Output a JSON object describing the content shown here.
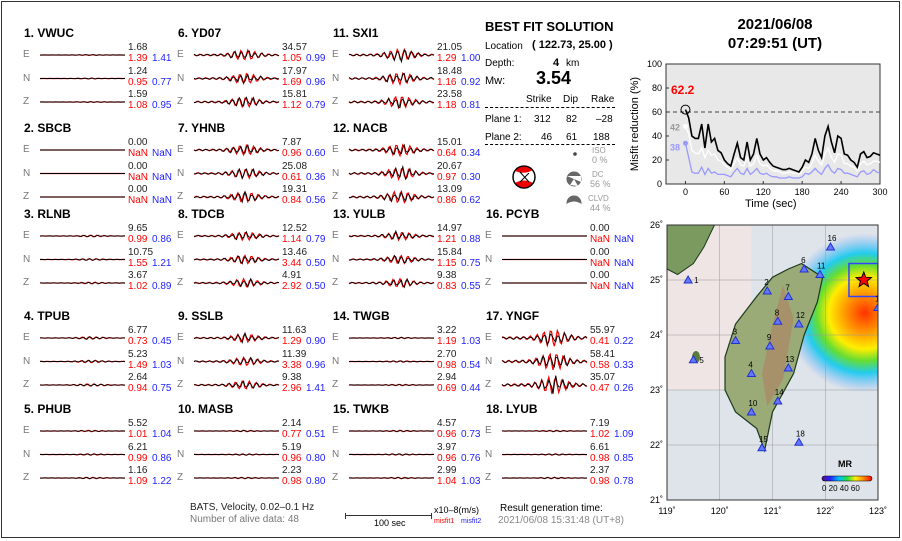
{
  "stations": [
    {
      "id": "1. VWUC",
      "col": 0,
      "row": 0,
      "E": [
        "1.68",
        "1.39",
        "1.41"
      ],
      "N": [
        "1.24",
        "0.95",
        "0.77"
      ],
      "Z": [
        "1.59",
        "1.08",
        "0.95"
      ],
      "amp": 0.05
    },
    {
      "id": "2. SBCB",
      "col": 0,
      "row": 1,
      "E": [
        "0.00",
        "NaN",
        "NaN"
      ],
      "N": [
        "0.00",
        "NaN",
        "NaN"
      ],
      "Z": [
        "0.00",
        "NaN",
        "NaN"
      ],
      "amp": 0
    },
    {
      "id": "3. RLNB",
      "col": 0,
      "row": 2,
      "E": [
        "9.65",
        "0.99",
        "0.86"
      ],
      "N": [
        "10.75",
        "1.55",
        "1.21"
      ],
      "Z": [
        "3.67",
        "1.02",
        "0.89"
      ],
      "amp": 0.1
    },
    {
      "id": "4. TPUB",
      "col": 0,
      "row": 3,
      "E": [
        "6.77",
        "0.73",
        "0.45"
      ],
      "N": [
        "5.23",
        "1.49",
        "1.03"
      ],
      "Z": [
        "2.64",
        "0.94",
        "0.75"
      ],
      "amp": 0.15
    },
    {
      "id": "5. PHUB",
      "col": 0,
      "row": 4,
      "E": [
        "5.52",
        "1.01",
        "1.04"
      ],
      "N": [
        "6.21",
        "0.99",
        "0.86"
      ],
      "Z": [
        "1.16",
        "1.09",
        "1.22"
      ],
      "amp": 0.08
    },
    {
      "id": "6. YD07",
      "col": 1,
      "row": 0,
      "E": [
        "34.57",
        "1.05",
        "0.99"
      ],
      "N": [
        "17.97",
        "1.69",
        "0.96"
      ],
      "Z": [
        "15.81",
        "1.12",
        "0.79"
      ],
      "amp": 0.6
    },
    {
      "id": "7. YHNB",
      "col": 1,
      "row": 1,
      "E": [
        "7.87",
        "0.96",
        "0.60"
      ],
      "N": [
        "25.08",
        "0.61",
        "0.36"
      ],
      "Z": [
        "19.31",
        "0.84",
        "0.56"
      ],
      "amp": 0.6
    },
    {
      "id": "8. TDCB",
      "col": 1,
      "row": 2,
      "E": [
        "12.52",
        "1.14",
        "0.79"
      ],
      "N": [
        "13.46",
        "3.44",
        "0.50"
      ],
      "Z": [
        "4.91",
        "2.92",
        "0.50"
      ],
      "amp": 0.5
    },
    {
      "id": "9. SSLB",
      "col": 1,
      "row": 3,
      "E": [
        "11.63",
        "1.29",
        "0.90"
      ],
      "N": [
        "11.39",
        "3.38",
        "0.96"
      ],
      "Z": [
        "9.38",
        "2.96",
        "1.41"
      ],
      "amp": 0.5
    },
    {
      "id": "10. MASB",
      "col": 1,
      "row": 4,
      "E": [
        "2.14",
        "0.77",
        "0.51"
      ],
      "N": [
        "5.19",
        "0.96",
        "0.80"
      ],
      "Z": [
        "2.23",
        "0.98",
        "0.80"
      ],
      "amp": 0.08
    },
    {
      "id": "11. SXI1",
      "col": 2,
      "row": 0,
      "E": [
        "21.05",
        "1.29",
        "1.00"
      ],
      "N": [
        "18.48",
        "1.16",
        "0.92"
      ],
      "Z": [
        "23.58",
        "1.18",
        "0.81"
      ],
      "amp": 0.7
    },
    {
      "id": "12. NACB",
      "col": 2,
      "row": 1,
      "E": [
        "15.01",
        "0.64",
        "0.34"
      ],
      "N": [
        "20.67",
        "0.97",
        "0.30"
      ],
      "Z": [
        "13.09",
        "0.86",
        "0.62"
      ],
      "amp": 0.7
    },
    {
      "id": "13. YULB",
      "col": 2,
      "row": 2,
      "E": [
        "14.97",
        "1.21",
        "0.88"
      ],
      "N": [
        "15.84",
        "1.15",
        "0.75"
      ],
      "Z": [
        "9.38",
        "0.83",
        "0.55"
      ],
      "amp": 0.5
    },
    {
      "id": "14. TWGB",
      "col": 2,
      "row": 3,
      "E": [
        "3.22",
        "1.19",
        "1.03"
      ],
      "N": [
        "2.70",
        "0.98",
        "0.54"
      ],
      "Z": [
        "2.94",
        "0.69",
        "0.44"
      ],
      "amp": 0.08
    },
    {
      "id": "15. TWKB",
      "col": 2,
      "row": 4,
      "E": [
        "4.57",
        "0.96",
        "0.73"
      ],
      "N": [
        "3.97",
        "0.96",
        "0.76"
      ],
      "Z": [
        "2.99",
        "1.04",
        "1.03"
      ],
      "amp": 0.08
    },
    {
      "id": "16. PCYB",
      "col": 3,
      "row": 2,
      "E": [
        "0.00",
        "NaN",
        "NaN"
      ],
      "N": [
        "0.00",
        "NaN",
        "NaN"
      ],
      "Z": [
        "0.00",
        "NaN",
        "NaN"
      ],
      "amp": 0
    },
    {
      "id": "17. YNGF",
      "col": 3,
      "row": 3,
      "E": [
        "55.97",
        "0.41",
        "0.22"
      ],
      "N": [
        "58.41",
        "0.58",
        "0.33"
      ],
      "Z": [
        "35.07",
        "0.47",
        "0.26"
      ],
      "amp": 1.0
    },
    {
      "id": "18. LYUB",
      "col": 3,
      "row": 4,
      "E": [
        "7.19",
        "1.02",
        "1.09"
      ],
      "N": [
        "6.61",
        "0.98",
        "0.85"
      ],
      "Z": [
        "2.37",
        "0.98",
        "0.78"
      ],
      "amp": 0.08
    }
  ],
  "components": [
    "E",
    "N",
    "Z"
  ],
  "footer": {
    "source": "BATS, Velocity, 0.02–0.1 Hz",
    "alive": "Number of alive data: 48",
    "scale_label": "100 sec",
    "units": "x10–8(m/s)",
    "misfit1": "misfit1",
    "misfit2": "misfit2",
    "gen_label": "Result generation time:",
    "gen_time": "2021/06/08 15:31:48 (UT+8)"
  },
  "solution": {
    "title": "BEST FIT SOLUTION",
    "location_label": "Location",
    "location": "( 122.73,  25.00 )",
    "depth_label": "Depth:",
    "depth": "4",
    "depth_unit": "km",
    "mw_label": "Mw:",
    "mw": "3.54",
    "headers": [
      "Strike",
      "Dip",
      "Rake"
    ],
    "planes": [
      {
        "label": "Plane 1:",
        "values": [
          "312",
          "82",
          "–28"
        ]
      },
      {
        "label": "Plane 2:",
        "values": [
          "46",
          "61",
          "188"
        ]
      }
    ],
    "iso_label": "ISO",
    "iso": "0 %",
    "dc_label": "DC",
    "dc": "56 %",
    "clvd_label": "CLVD",
    "clvd": "44 %"
  },
  "event": {
    "date": "2021/06/08",
    "time": "07:29:51  (UT)"
  },
  "colors": {
    "observed": "#000000",
    "synthetic": "#ee0000",
    "misfit1": "#ff0000",
    "misfit2": "#2222ff",
    "best": "#ff0000"
  },
  "chart_data": {
    "type": "line",
    "xlabel": "Time (sec)",
    "ylabel": "Misfit reduction (%)",
    "xlim": [
      -30,
      300
    ],
    "ylim": [
      0,
      100
    ],
    "xticks": [
      0,
      60,
      120,
      180,
      240,
      300
    ],
    "yticks": [
      0,
      20,
      40,
      60,
      80,
      100
    ],
    "reference_line": 60,
    "annotations": {
      "best": "62.2",
      "gray": "42",
      "blue": "38"
    },
    "x": [
      0,
      5,
      10,
      15,
      20,
      25,
      30,
      35,
      40,
      45,
      50,
      55,
      60,
      65,
      70,
      75,
      80,
      85,
      90,
      95,
      100,
      105,
      110,
      115,
      120,
      125,
      130,
      135,
      140,
      145,
      150,
      155,
      160,
      165,
      170,
      175,
      180,
      185,
      190,
      195,
      200,
      205,
      210,
      215,
      220,
      225,
      230,
      235,
      240,
      245,
      250,
      255,
      260,
      265,
      270,
      275,
      280,
      285,
      290,
      295,
      300
    ],
    "series": [
      {
        "color": "#000000",
        "values": [
          62,
          55,
          40,
          38,
          38,
          50,
          30,
          50,
          35,
          38,
          28,
          26,
          20,
          17,
          15,
          25,
          34,
          22,
          20,
          35,
          20,
          25,
          38,
          25,
          20,
          22,
          18,
          15,
          14,
          13,
          12,
          12,
          13,
          12,
          11,
          10,
          14,
          20,
          18,
          25,
          38,
          28,
          22,
          40,
          48,
          35,
          26,
          40,
          38,
          25,
          24,
          20,
          18,
          14,
          25,
          27,
          22,
          23,
          26,
          25,
          24
        ]
      },
      {
        "color": "#ffffff",
        "values": [
          48,
          42,
          28,
          26,
          25,
          30,
          22,
          28,
          24,
          25,
          20,
          19,
          16,
          14,
          12,
          17,
          22,
          16,
          15,
          22,
          15,
          17,
          24,
          17,
          15,
          16,
          13,
          11,
          11,
          10,
          9,
          9,
          10,
          9,
          9,
          8,
          11,
          14,
          13,
          17,
          24,
          19,
          16,
          25,
          30,
          22,
          18,
          25,
          24,
          17,
          17,
          15,
          14,
          11,
          17,
          19,
          16,
          17,
          19,
          19,
          18
        ]
      },
      {
        "color": "#9999ff",
        "values": [
          34,
          22,
          10,
          9,
          9,
          14,
          8,
          13,
          9,
          10,
          8,
          8,
          8,
          7,
          6,
          10,
          13,
          9,
          8,
          13,
          8,
          10,
          13,
          9,
          8,
          9,
          7,
          6,
          6,
          5,
          5,
          5,
          6,
          5,
          5,
          5,
          6,
          9,
          8,
          10,
          13,
          10,
          8,
          13,
          16,
          11,
          9,
          13,
          12,
          9,
          9,
          8,
          7,
          6,
          10,
          11,
          8,
          9,
          12,
          10,
          9
        ]
      }
    ]
  },
  "map": {
    "lon_ticks": [
      "119˚",
      "120˚",
      "121˚",
      "122˚",
      "123˚"
    ],
    "lat_ticks": [
      "21˚",
      "22˚",
      "23˚",
      "24˚",
      "25˚",
      "26˚"
    ],
    "colorbar_title": "MR",
    "colorbar_labels": "0 20 40 60",
    "epicenter": [
      122.73,
      25.0
    ],
    "stations": [
      {
        "n": "1",
        "lon": 119.4,
        "lat": 25.0
      },
      {
        "n": "2",
        "lon": 120.9,
        "lat": 24.8
      },
      {
        "n": "3",
        "lon": 120.3,
        "lat": 23.9
      },
      {
        "n": "4",
        "lon": 120.6,
        "lat": 23.3
      },
      {
        "n": "5",
        "lon": 119.5,
        "lat": 23.55
      },
      {
        "n": "6",
        "lon": 121.6,
        "lat": 25.2
      },
      {
        "n": "7",
        "lon": 121.3,
        "lat": 24.7
      },
      {
        "n": "8",
        "lon": 121.1,
        "lat": 24.25
      },
      {
        "n": "9",
        "lon": 120.95,
        "lat": 23.8
      },
      {
        "n": "10",
        "lon": 120.6,
        "lat": 22.6
      },
      {
        "n": "11",
        "lon": 121.9,
        "lat": 25.1
      },
      {
        "n": "12",
        "lon": 121.5,
        "lat": 24.2
      },
      {
        "n": "13",
        "lon": 121.3,
        "lat": 23.4
      },
      {
        "n": "14",
        "lon": 121.1,
        "lat": 22.8
      },
      {
        "n": "15",
        "lon": 120.8,
        "lat": 21.95
      },
      {
        "n": "16",
        "lon": 122.1,
        "lat": 25.6
      },
      {
        "n": "17",
        "lon": 123.0,
        "lat": 24.5
      },
      {
        "n": "18",
        "lon": 121.5,
        "lat": 22.05
      }
    ]
  }
}
